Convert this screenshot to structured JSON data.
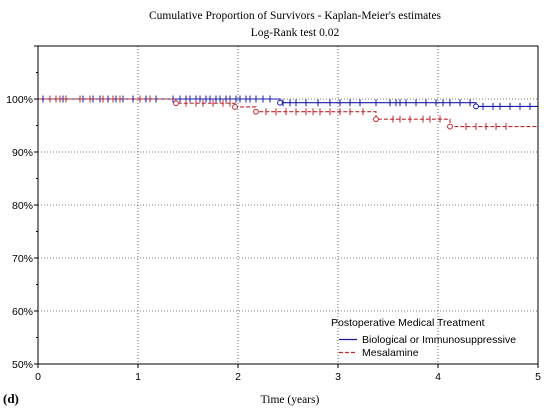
{
  "panel_label": "(d)",
  "chart_data": {
    "type": "line",
    "subtype": "kaplan-meier step",
    "title": "Cumulative Proportion of Survivors - Kaplan-Meier's estimates",
    "subtitle": "Log-Rank test 0.02",
    "xlabel": "Time (years)",
    "ylabel": "",
    "xlim": [
      0,
      5
    ],
    "ylim": [
      50,
      110
    ],
    "x_ticks": [
      0,
      1,
      2,
      3,
      4,
      5
    ],
    "y_ticks": [
      50,
      60,
      70,
      80,
      90,
      100
    ],
    "y_tick_labels": [
      "50%",
      "60%",
      "70%",
      "80%",
      "90%",
      "100%"
    ],
    "grid": true,
    "legend": {
      "title": "Postoperative Medical Treatment",
      "position": "bottom-right"
    },
    "series": [
      {
        "name": "Biological or Immunosuppressive",
        "color": "#1a1aa6",
        "line_style": "solid",
        "steps": [
          [
            0,
            100
          ],
          [
            2.42,
            99.3
          ],
          [
            4.38,
            98.6
          ],
          [
            5,
            98.6
          ]
        ],
        "censored": [
          0.05,
          0.18,
          0.25,
          0.45,
          0.55,
          0.62,
          0.7,
          0.78,
          0.85,
          0.95,
          1.02,
          1.08,
          1.12,
          1.18,
          1.35,
          1.42,
          1.48,
          1.52,
          1.58,
          1.62,
          1.68,
          1.72,
          1.78,
          1.82,
          1.88,
          1.92,
          1.98,
          2.02,
          2.08,
          2.12,
          2.18,
          2.25,
          2.32,
          2.45,
          2.52,
          2.58,
          2.68,
          2.8,
          2.92,
          3.02,
          3.12,
          3.22,
          3.38,
          3.52,
          3.58,
          3.62,
          3.68,
          3.78,
          3.88,
          3.98,
          4.05,
          4.12,
          4.22,
          4.32,
          4.45,
          4.55,
          4.62,
          4.72,
          4.82,
          4.92
        ],
        "events": [
          2.42,
          4.38
        ]
      },
      {
        "name": "Mesalamine",
        "color": "#c0282d",
        "line_style": "dashed",
        "steps": [
          [
            0,
            100
          ],
          [
            1.38,
            99.2
          ],
          [
            1.97,
            98.5
          ],
          [
            2.18,
            97.6
          ],
          [
            3.38,
            96.2
          ],
          [
            4.12,
            94.8
          ],
          [
            5,
            94.8
          ]
        ],
        "censored": [
          0.12,
          0.18,
          0.22,
          0.28,
          0.42,
          0.52,
          0.65,
          0.75,
          0.82,
          1.02,
          1.12,
          1.48,
          1.58,
          1.65,
          1.75,
          1.85,
          1.92,
          2.28,
          2.38,
          2.48,
          2.58,
          2.68,
          2.75,
          2.82,
          2.92,
          3.02,
          3.12,
          3.25,
          3.55,
          3.62,
          3.72,
          3.85,
          3.92,
          4.02,
          4.28,
          4.38,
          4.48,
          4.58,
          4.68
        ],
        "events": [
          1.38,
          1.97,
          2.18,
          3.38,
          4.12
        ]
      }
    ]
  }
}
